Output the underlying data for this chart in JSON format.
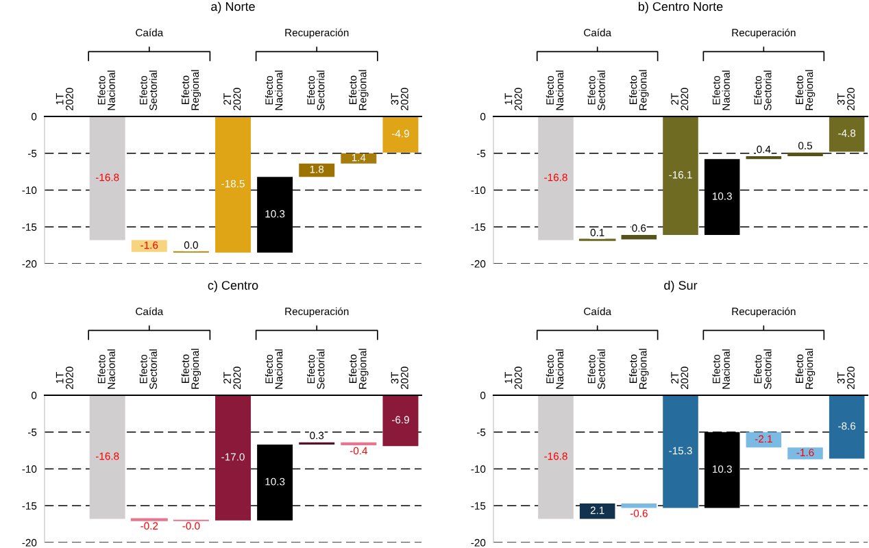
{
  "chart_data": [
    {
      "type": "bar",
      "title": "a) Norte",
      "categories": [
        "1T\n2020",
        "Efecto\nNacional",
        "Efecto\nSectorial",
        "Efecto\nRegional",
        "2T\n2020",
        "Efecto\nNacional",
        "Efecto\nSectorial",
        "Efecto\nRegional",
        "3T\n2020"
      ],
      "values": [
        0,
        -16.8,
        -1.6,
        0.0,
        -18.5,
        10.3,
        1.8,
        1.4,
        -4.9
      ],
      "base": [
        0,
        0,
        -16.8,
        -18.4,
        0,
        -18.5,
        -8.2,
        -6.4,
        0
      ],
      "colors": [
        "#e0a516",
        "#d0cece",
        "#f7d47e",
        "#b8860b",
        "#e0a516",
        "#000000",
        "#9c7200",
        "#a67d0c",
        "#e0a516"
      ],
      "value_labels": [
        null,
        "-16.8",
        "-1.6",
        "0.0",
        "-18.5",
        "10.3",
        "1.8",
        "1.4",
        "-4.9"
      ],
      "ylim": [
        -20,
        0
      ],
      "yticks": [
        -20,
        -15,
        -10,
        -5,
        0
      ],
      "grid": "y",
      "annotations": [
        "Caída",
        "Recuperación"
      ]
    },
    {
      "type": "bar",
      "title": "b) Centro Norte",
      "categories": [
        "1T\n2020",
        "Efecto\nNacional",
        "Efecto\nSectorial",
        "Efecto\nRegional",
        "2T\n2020",
        "Efecto\nNacional",
        "Efecto\nSectorial",
        "Efecto\nRegional",
        "3T\n2020"
      ],
      "values": [
        0,
        -16.8,
        0.1,
        0.6,
        -16.1,
        10.3,
        0.4,
        0.5,
        -4.8
      ],
      "base": [
        0,
        0,
        -16.8,
        -16.7,
        0,
        -16.1,
        -5.8,
        -5.4,
        0
      ],
      "colors": [
        "#6f6b22",
        "#d0cece",
        "#6b6820",
        "#55531a",
        "#6f6b22",
        "#000000",
        "#55531a",
        "#55531a",
        "#6f6b22"
      ],
      "value_labels": [
        null,
        "-16.8",
        "0.1",
        "0.6",
        "-16.1",
        "10.3",
        "0.4",
        "0.5",
        "-4.8"
      ],
      "ylim": [
        -20,
        0
      ],
      "yticks": [
        -20,
        -15,
        -10,
        -5,
        0
      ],
      "grid": "y",
      "annotations": [
        "Caída",
        "Recuperación"
      ]
    },
    {
      "type": "bar",
      "title": "c) Centro",
      "categories": [
        "1T\n2020",
        "Efecto\nNacional",
        "Efecto\nSectorial",
        "Efecto\nRegional",
        "2T\n2020",
        "Efecto\nNacional",
        "Efecto\nSectorial",
        "Efecto\nRegional",
        "3T\n2020"
      ],
      "values": [
        0,
        -16.8,
        -0.2,
        -0.0,
        -17.0,
        10.3,
        0.3,
        -0.4,
        -6.9
      ],
      "base": [
        0,
        0,
        -16.8,
        -17.0,
        0,
        -17.0,
        -6.7,
        -6.4,
        0
      ],
      "colors": [
        "#8b1a3a",
        "#d0cece",
        "#e8758f",
        "#e8758f",
        "#8b1a3a",
        "#000000",
        "#5a1028",
        "#e8758f",
        "#8b1a3a"
      ],
      "value_labels": [
        null,
        "-16.8",
        "-0.2",
        "-0.0",
        "-17.0",
        "10.3",
        "0.3",
        "-0.4",
        "-6.9"
      ],
      "ylim": [
        -20,
        0
      ],
      "yticks": [
        -20,
        -15,
        -10,
        -5,
        0
      ],
      "grid": "y",
      "annotations": [
        "Caída",
        "Recuperación"
      ]
    },
    {
      "type": "bar",
      "title": "d) Sur",
      "categories": [
        "1T\n2020",
        "Efecto\nNacional",
        "Efecto\nSectorial",
        "Efecto\nRegional",
        "2T\n2020",
        "Efecto\nNacional",
        "Efecto\nSectorial",
        "Efecto\nRegional",
        "3T\n2020"
      ],
      "values": [
        0,
        -16.8,
        2.1,
        -0.6,
        -15.3,
        10.3,
        -2.1,
        -1.6,
        -8.6
      ],
      "base": [
        0,
        0,
        -16.8,
        -14.7,
        0,
        -15.3,
        -5.0,
        -7.1,
        0
      ],
      "colors": [
        "#266c9c",
        "#d0cece",
        "#11334f",
        "#7bbbe3",
        "#266c9c",
        "#000000",
        "#7bbbe3",
        "#7bbbe3",
        "#266c9c"
      ],
      "value_labels": [
        null,
        "-16.8",
        "2.1",
        "-0.6",
        "-15.3",
        "10.3",
        "-2.1",
        "-1.6",
        "-8.6"
      ],
      "ylim": [
        -20,
        0
      ],
      "yticks": [
        -20,
        -15,
        -10,
        -5,
        0
      ],
      "grid": "y",
      "annotations": [
        "Caída",
        "Recuperación"
      ]
    }
  ]
}
